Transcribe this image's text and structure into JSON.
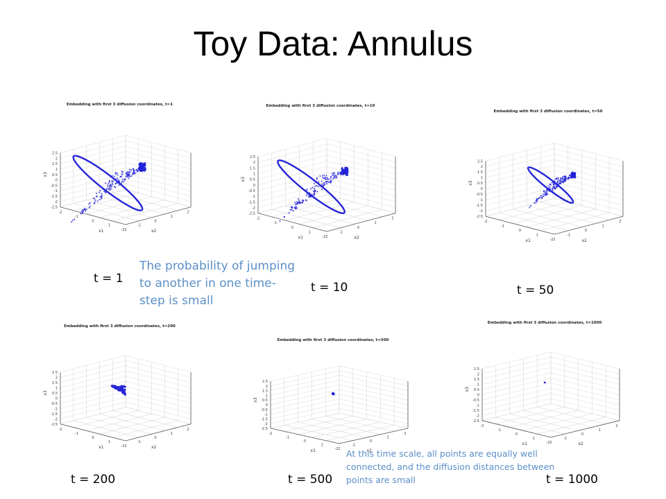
{
  "slide_title": "Toy Data: Annulus",
  "annotation_small_jump": "The probability of jumping to another in one time-step is small",
  "annotation_large_t": "At this time scale, all points are equally well connected, and the diffusion distances between points are small",
  "colors": {
    "points": "#2323d8",
    "annotation": "#5b8fc7",
    "grid": "#d9d9d9",
    "axes": "#555555"
  },
  "chart_data": [
    {
      "type": "scatter",
      "title": "Embedding with first 3 diffusion coordinates, t=1",
      "time_label": "t = 1",
      "xlabel": "x1",
      "ylabel": "x2",
      "zlabel": "x3",
      "zlim": [
        -2.5,
        2.5
      ],
      "z_ticks": [
        -2.5,
        -2,
        -1.5,
        -1,
        -0.5,
        0,
        0.5,
        1,
        1.5,
        2,
        2.5
      ],
      "xy_ticks": [
        -2,
        -1,
        0,
        1,
        2
      ],
      "grid": true,
      "shape_extent": 1.0
    },
    {
      "type": "scatter",
      "title": "Embedding with first 3 diffusion coordinates, t=10",
      "time_label": "t = 10",
      "xlabel": "x1",
      "ylabel": "x2",
      "zlabel": "x3",
      "zlim": [
        -2.5,
        2.5
      ],
      "z_ticks": [
        -2.5,
        -2,
        -1.5,
        -1,
        -0.5,
        0,
        0.5,
        1,
        1.5,
        2,
        2.5
      ],
      "xy_ticks": [
        -2,
        -1,
        0,
        1,
        2
      ],
      "grid": true,
      "shape_extent": 0.92
    },
    {
      "type": "scatter",
      "title": "Embedding with first 3 diffusion coordinates, t=50",
      "time_label": "t = 50",
      "xlabel": "x1",
      "ylabel": "x2",
      "zlabel": "x3",
      "zlim": [
        -2.5,
        2.5
      ],
      "z_ticks": [
        -2.5,
        -2,
        -1.5,
        -1,
        -0.5,
        0,
        0.5,
        1,
        1.5,
        2,
        2.5
      ],
      "xy_ticks": [
        -2,
        -1,
        0,
        1,
        2
      ],
      "grid": true,
      "shape_extent": 0.62
    },
    {
      "type": "scatter",
      "title": "Embedding with first 3 diffusion coordinates, t=200",
      "time_label": "t = 200",
      "xlabel": "x1",
      "ylabel": "x2",
      "zlabel": "x3",
      "zlim": [
        -2.5,
        2.5
      ],
      "z_ticks": [
        -2.5,
        -2,
        -1.5,
        -1,
        -0.5,
        0,
        0.5,
        1,
        1.5,
        2,
        2.5
      ],
      "xy_ticks": [
        -2,
        -1,
        0,
        1,
        2
      ],
      "grid": true,
      "shape_extent": 0.17
    },
    {
      "type": "scatter",
      "title": "Embedding with first 3 diffusion coordinates, t=500",
      "time_label": "t = 500",
      "xlabel": "x1",
      "ylabel": "x2",
      "zlabel": "x3",
      "zlim": [
        -2.5,
        2.5
      ],
      "z_ticks": [
        -2.5,
        -2,
        -1.5,
        -1,
        -0.5,
        0,
        0.5,
        1,
        1.5,
        2,
        2.5
      ],
      "xy_ticks": [
        -2,
        -1,
        0,
        1,
        2
      ],
      "grid": true,
      "shape_extent": 0.03
    },
    {
      "type": "scatter",
      "title": "Embedding with first 3 diffusion coordinates, t=1000",
      "time_label": "t = 1000",
      "xlabel": "x1",
      "ylabel": "x2",
      "zlabel": "x3",
      "zlim": [
        -2.5,
        2.5
      ],
      "z_ticks": [
        -2.5,
        -2,
        -1.5,
        -1,
        -0.5,
        0,
        0.5,
        1,
        1.5,
        2,
        2.5
      ],
      "xy_ticks": [
        -2,
        -1,
        0,
        1,
        2
      ],
      "grid": true,
      "shape_extent": 0.01
    }
  ]
}
